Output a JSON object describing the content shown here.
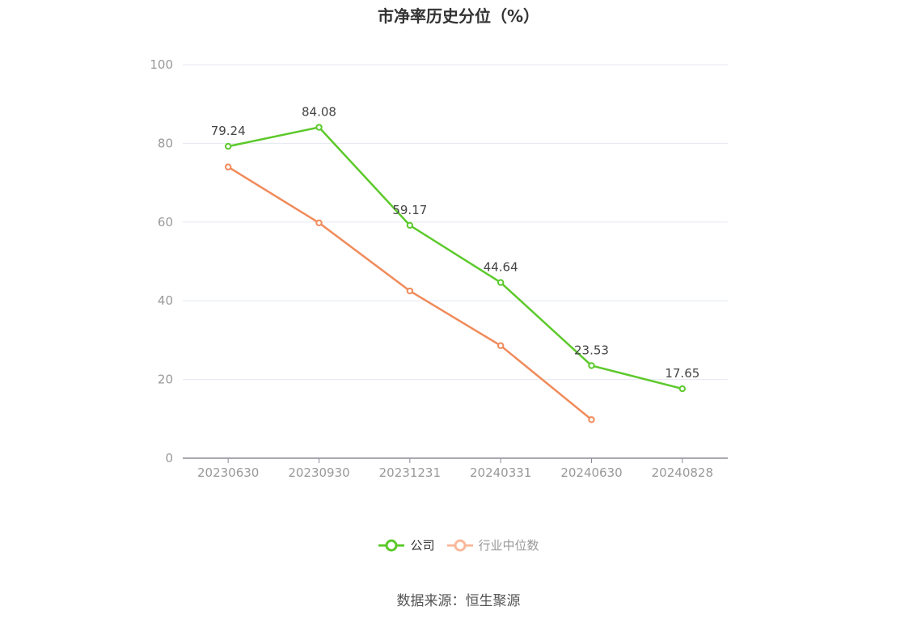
{
  "chart_data": {
    "type": "line",
    "title": "市净率历史分位（%）",
    "categories": [
      "20230630",
      "20230930",
      "20231231",
      "20240331",
      "20240630",
      "20240828"
    ],
    "series": [
      {
        "name": "公司",
        "color": "#5cc92b",
        "values": [
          79.24,
          84.08,
          59.17,
          44.64,
          23.53,
          17.65
        ],
        "labels": [
          "79.24",
          "84.08",
          "59.17",
          "44.64",
          "23.53",
          "17.65"
        ]
      },
      {
        "name": "行业中位数",
        "color": "#f08a5a",
        "legend_color": "#f9b89b",
        "values": [
          74.0,
          59.8,
          42.5,
          28.6,
          9.8,
          null
        ]
      }
    ],
    "yticks": [
      0,
      20,
      40,
      60,
      80,
      100
    ],
    "ylim": [
      0,
      100
    ],
    "grid": true,
    "legend_position": "bottom"
  },
  "source": "数据来源：恒生聚源"
}
